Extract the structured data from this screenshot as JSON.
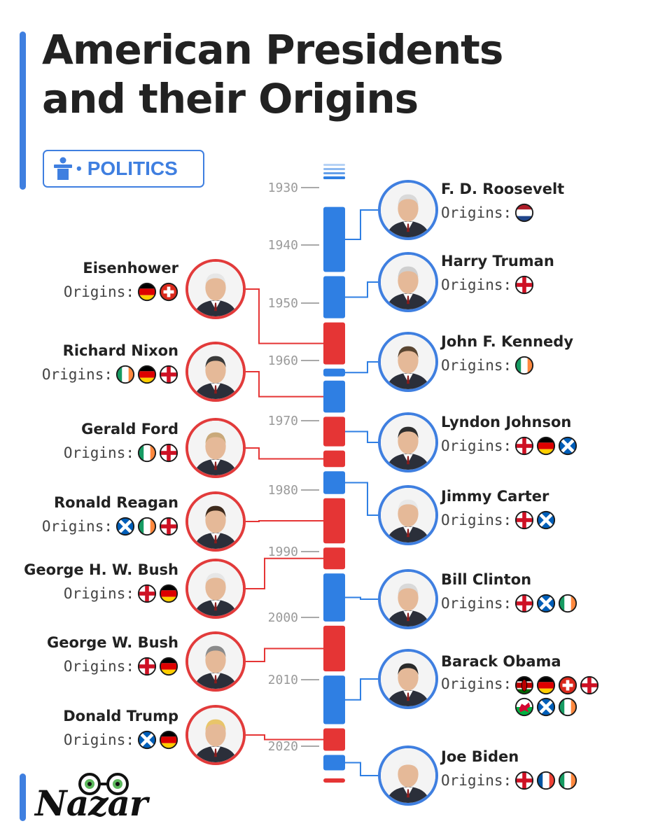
{
  "title": {
    "line1": "American Presidents",
    "line2": "and their Origins"
  },
  "tag": {
    "label": "POLITICS",
    "icon": "podium-speaker-icon"
  },
  "colors": {
    "democrat": "#2f7fe3",
    "republican": "#e53535",
    "accent": "#3f7fe0"
  },
  "timeline": {
    "years": [
      "1930",
      "1940",
      "1950",
      "1960",
      "1970",
      "1980",
      "1990",
      "2000",
      "2010",
      "2020"
    ],
    "segments": [
      {
        "party": "democrat",
        "from": 1933,
        "to": 1945
      },
      {
        "party": "democrat",
        "from": 1945,
        "to": 1953
      },
      {
        "party": "republican",
        "from": 1953,
        "to": 1961
      },
      {
        "party": "democrat",
        "from": 1961,
        "to": 1963
      },
      {
        "party": "democrat",
        "from": 1963,
        "to": 1969
      },
      {
        "party": "republican",
        "from": 1969,
        "to": 1974
      },
      {
        "party": "republican",
        "from": 1974,
        "to": 1977
      },
      {
        "party": "democrat",
        "from": 1977,
        "to": 1981
      },
      {
        "party": "republican",
        "from": 1981,
        "to": 1989
      },
      {
        "party": "republican",
        "from": 1989,
        "to": 1993
      },
      {
        "party": "democrat",
        "from": 1993,
        "to": 2001
      },
      {
        "party": "republican",
        "from": 2001,
        "to": 2009
      },
      {
        "party": "democrat",
        "from": 2009,
        "to": 2017
      },
      {
        "party": "republican",
        "from": 2017,
        "to": 2021
      },
      {
        "party": "democrat",
        "from": 2021,
        "to": 2025
      }
    ]
  },
  "origins_label": "Origins:",
  "presidents": [
    {
      "name": "F. D. Roosevelt",
      "side": "right",
      "party": "democrat",
      "flags": [
        "netherlands"
      ]
    },
    {
      "name": "Harry Truman",
      "side": "right",
      "party": "democrat",
      "flags": [
        "england"
      ]
    },
    {
      "name": "Eisenhower",
      "side": "left",
      "party": "republican",
      "flags": [
        "germany",
        "switzerland"
      ]
    },
    {
      "name": "John F. Kennedy",
      "side": "right",
      "party": "democrat",
      "flags": [
        "ireland"
      ]
    },
    {
      "name": "Richard Nixon",
      "side": "left",
      "party": "republican",
      "flags": [
        "ireland",
        "germany",
        "england"
      ]
    },
    {
      "name": "Lyndon Johnson",
      "side": "right",
      "party": "democrat",
      "flags": [
        "england",
        "germany",
        "scotland"
      ]
    },
    {
      "name": "Gerald Ford",
      "side": "left",
      "party": "republican",
      "flags": [
        "ireland",
        "england"
      ]
    },
    {
      "name": "Jimmy Carter",
      "side": "right",
      "party": "democrat",
      "flags": [
        "england",
        "scotland"
      ]
    },
    {
      "name": "Ronald Reagan",
      "side": "left",
      "party": "republican",
      "flags": [
        "scotland",
        "ireland",
        "england"
      ]
    },
    {
      "name": "George H. W. Bush",
      "side": "left",
      "party": "republican",
      "flags": [
        "england",
        "germany"
      ]
    },
    {
      "name": "Bill Clinton",
      "side": "right",
      "party": "democrat",
      "flags": [
        "england",
        "scotland",
        "ireland"
      ]
    },
    {
      "name": "George W. Bush",
      "side": "left",
      "party": "republican",
      "flags": [
        "england",
        "germany"
      ]
    },
    {
      "name": "Barack Obama",
      "side": "right",
      "party": "democrat",
      "flags": [
        "kenya",
        "germany",
        "switzerland",
        "england",
        "wales",
        "scotland",
        "ireland"
      ]
    },
    {
      "name": "Donald Trump",
      "side": "left",
      "party": "republican",
      "flags": [
        "scotland",
        "germany"
      ]
    },
    {
      "name": "Joe Biden",
      "side": "right",
      "party": "democrat",
      "flags": [
        "england",
        "france",
        "ireland"
      ]
    }
  ],
  "logo": {
    "text": "Nazar"
  }
}
